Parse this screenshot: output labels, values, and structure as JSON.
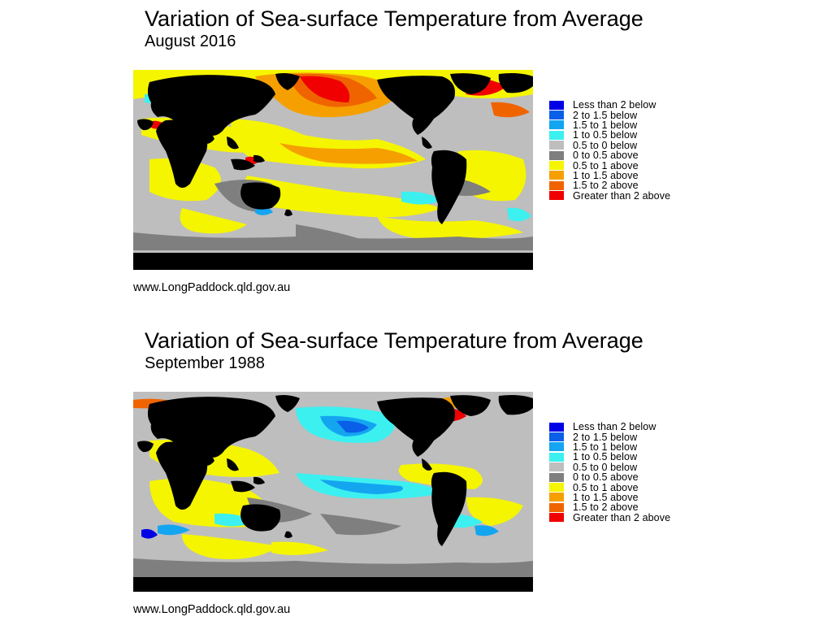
{
  "panels": [
    {
      "title": "Variation of Sea-surface Temperature from Average",
      "subtitle": "August 2016",
      "credit": "www.LongPaddock.qld.gov.au"
    },
    {
      "title": "Variation of Sea-surface Temperature from Average",
      "subtitle": "September 1988",
      "credit": "www.LongPaddock.qld.gov.au"
    }
  ],
  "legend": [
    {
      "label": "Less than 2 below",
      "color": "#0000e6"
    },
    {
      "label": "2 to 1.5 below",
      "color": "#0a5fe8"
    },
    {
      "label": "1.5 to 1 below",
      "color": "#14a5f0"
    },
    {
      "label": "1 to 0.5 below",
      "color": "#3cf0f0"
    },
    {
      "label": "0.5 to 0 below",
      "color": "#bebebe"
    },
    {
      "label": "0 to 0.5 above",
      "color": "#7f7f7f"
    },
    {
      "label": "0.5 to 1 above",
      "color": "#f5f500"
    },
    {
      "label": "1 to 1.5 above",
      "color": "#f5a000"
    },
    {
      "label": "1.5 to 2 above",
      "color": "#f06400"
    },
    {
      "label": "Greater than 2 above",
      "color": "#f00000"
    }
  ],
  "land_color": "#000000"
}
